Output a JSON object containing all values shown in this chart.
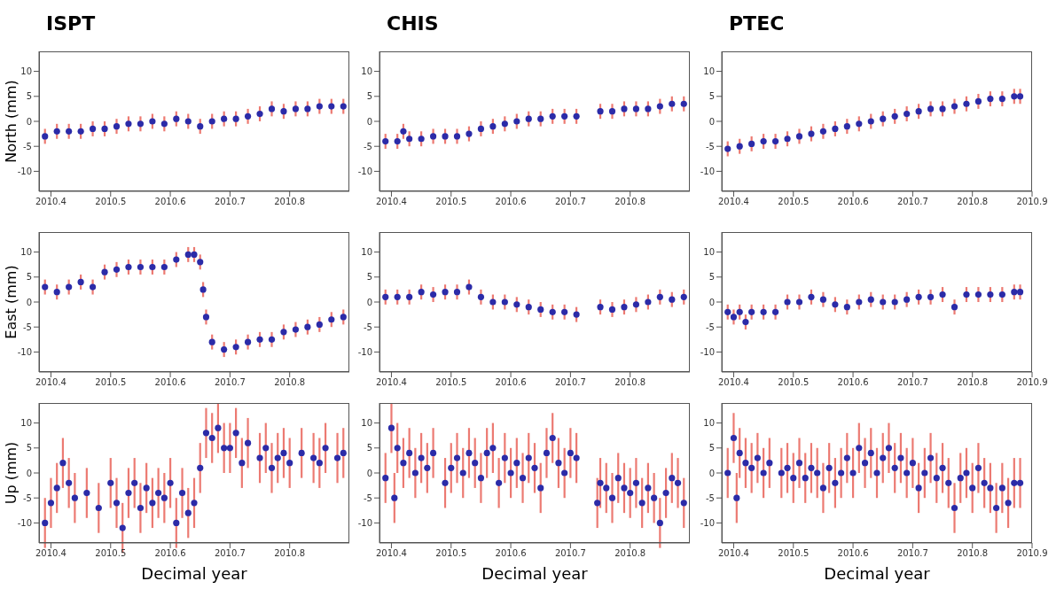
{
  "chart_data": [
    {
      "type": "scatter",
      "title": "ISPT",
      "ylabel": "North (mm)",
      "marker": "circle",
      "xlim": [
        2010.38,
        2010.9
      ],
      "xticks": [
        2010.4,
        2010.5,
        2010.6,
        2010.7,
        2010.8
      ],
      "ylim": [
        -14,
        14
      ],
      "yticks": [
        -10,
        -5,
        0,
        5,
        10
      ],
      "series": [
        {
          "color": "#2b2ba8",
          "x": [
            2010.39,
            2010.41,
            2010.43,
            2010.45,
            2010.47,
            2010.49,
            2010.51,
            2010.53,
            2010.55,
            2010.57,
            2010.59,
            2010.61,
            2010.63,
            2010.65,
            2010.67,
            2010.69,
            2010.71,
            2010.73,
            2010.75,
            2010.77,
            2010.79,
            2010.81,
            2010.83,
            2010.85,
            2010.87,
            2010.89
          ],
          "values": [
            -3,
            -2,
            -2,
            -2,
            -1.5,
            -1.5,
            -1,
            -0.5,
            -0.5,
            0,
            -0.5,
            0.5,
            0,
            -1,
            0,
            0.5,
            0.5,
            1,
            1.5,
            2.5,
            2,
            2.5,
            2.5,
            3,
            3,
            3
          ],
          "errors": [
            1.5,
            1.5,
            1.5,
            1.5,
            1.5,
            1.5,
            1.5,
            1.5,
            1.5,
            1.5,
            1.5,
            1.5,
            1.5,
            1.5,
            1.5,
            1.5,
            1.5,
            1.5,
            1.5,
            1.5,
            1.5,
            1.5,
            1.5,
            1.5,
            1.5,
            1.5
          ]
        }
      ]
    },
    {
      "type": "scatter",
      "title": "CHIS",
      "marker": "circle",
      "xlim": [
        2010.38,
        2010.9
      ],
      "xticks": [
        2010.4,
        2010.5,
        2010.6,
        2010.7,
        2010.8
      ],
      "ylim": [
        -14,
        14
      ],
      "yticks": [
        -10,
        -5,
        0,
        5,
        10
      ],
      "series": [
        {
          "color": "#2b2ba8",
          "x": [
            2010.39,
            2010.41,
            2010.42,
            2010.43,
            2010.45,
            2010.47,
            2010.49,
            2010.51,
            2010.53,
            2010.55,
            2010.57,
            2010.59,
            2010.61,
            2010.63,
            2010.65,
            2010.67,
            2010.69,
            2010.71,
            2010.75,
            2010.77,
            2010.79,
            2010.81,
            2010.83,
            2010.85,
            2010.87,
            2010.89
          ],
          "values": [
            -4,
            -4,
            -2,
            -3.5,
            -3.5,
            -3,
            -3,
            -3,
            -2.5,
            -1.5,
            -1,
            -0.5,
            0,
            0.5,
            0.5,
            1,
            1,
            1,
            2,
            2,
            2.5,
            2.5,
            2.5,
            3,
            3.5,
            3.5
          ],
          "errors": [
            1.5,
            1.5,
            1.5,
            1.5,
            1.5,
            1.5,
            1.5,
            1.5,
            1.5,
            1.5,
            1.5,
            1.5,
            1.5,
            1.5,
            1.5,
            1.5,
            1.5,
            1.5,
            1.5,
            1.5,
            1.5,
            1.5,
            1.5,
            1.5,
            1.5,
            1.5
          ]
        }
      ]
    },
    {
      "type": "scatter",
      "title": "PTEC",
      "marker": "circle",
      "xlim": [
        2010.38,
        2010.9
      ],
      "xticks": [
        2010.4,
        2010.5,
        2010.6,
        2010.7,
        2010.8,
        2010.9
      ],
      "ylim": [
        -14,
        14
      ],
      "yticks": [
        -10,
        -5,
        0,
        5,
        10
      ],
      "series": [
        {
          "color": "#2b2ba8",
          "x": [
            2010.39,
            2010.41,
            2010.43,
            2010.45,
            2010.47,
            2010.49,
            2010.51,
            2010.53,
            2010.55,
            2010.57,
            2010.59,
            2010.61,
            2010.63,
            2010.65,
            2010.67,
            2010.69,
            2010.71,
            2010.73,
            2010.75,
            2010.77,
            2010.79,
            2010.81,
            2010.83,
            2010.85,
            2010.87,
            2010.88
          ],
          "values": [
            -5.5,
            -5,
            -4.5,
            -4,
            -4,
            -3.5,
            -3,
            -2.5,
            -2,
            -1.5,
            -1,
            -0.5,
            0,
            0.5,
            1,
            1.5,
            2,
            2.5,
            2.5,
            3,
            3.5,
            4,
            4.5,
            4.5,
            5,
            5
          ],
          "errors": [
            1.5,
            1.5,
            1.5,
            1.5,
            1.5,
            1.5,
            1.5,
            1.5,
            1.5,
            1.5,
            1.5,
            1.5,
            1.5,
            1.5,
            1.5,
            1.5,
            1.5,
            1.5,
            1.5,
            1.5,
            1.5,
            1.5,
            1.5,
            1.5,
            1.5,
            1.5
          ]
        }
      ]
    },
    {
      "type": "scatter",
      "ylabel": "East (mm)",
      "marker": "circle",
      "xlim": [
        2010.38,
        2010.9
      ],
      "xticks": [
        2010.4,
        2010.5,
        2010.6,
        2010.7,
        2010.8
      ],
      "ylim": [
        -14,
        14
      ],
      "yticks": [
        -10,
        -5,
        0,
        5,
        10
      ],
      "series": [
        {
          "color": "#2b2ba8",
          "x": [
            2010.39,
            2010.41,
            2010.43,
            2010.45,
            2010.47,
            2010.49,
            2010.51,
            2010.53,
            2010.55,
            2010.57,
            2010.59,
            2010.61,
            2010.63,
            2010.64,
            2010.65,
            2010.655,
            2010.66,
            2010.67,
            2010.69,
            2010.71,
            2010.73,
            2010.75,
            2010.77,
            2010.79,
            2010.81,
            2010.83,
            2010.85,
            2010.87,
            2010.89
          ],
          "values": [
            3,
            2,
            3,
            4,
            3,
            6,
            6.5,
            7,
            7,
            7,
            7,
            8.5,
            9.5,
            9.5,
            8,
            2.5,
            -3,
            -8,
            -9.5,
            -9,
            -8,
            -7.5,
            -7.5,
            -6,
            -5.5,
            -5,
            -4.5,
            -3.5,
            -3
          ],
          "errors": [
            1.5,
            1.5,
            1.5,
            1.5,
            1.5,
            1.5,
            1.5,
            1.5,
            1.5,
            1.5,
            1.5,
            1.5,
            1.5,
            1.5,
            1.5,
            1.5,
            1.5,
            1.5,
            1.5,
            1.5,
            1.5,
            1.5,
            1.5,
            1.5,
            1.5,
            1.5,
            1.5,
            1.5,
            1.5
          ]
        }
      ]
    },
    {
      "type": "scatter",
      "marker": "circle",
      "xlim": [
        2010.38,
        2010.9
      ],
      "xticks": [
        2010.4,
        2010.5,
        2010.6,
        2010.7,
        2010.8
      ],
      "ylim": [
        -14,
        14
      ],
      "yticks": [
        -10,
        -5,
        0,
        5,
        10
      ],
      "series": [
        {
          "color": "#2b2ba8",
          "x": [
            2010.39,
            2010.41,
            2010.43,
            2010.45,
            2010.47,
            2010.49,
            2010.51,
            2010.53,
            2010.55,
            2010.57,
            2010.59,
            2010.61,
            2010.63,
            2010.65,
            2010.67,
            2010.69,
            2010.71,
            2010.75,
            2010.77,
            2010.79,
            2010.81,
            2010.83,
            2010.85,
            2010.87,
            2010.89
          ],
          "values": [
            1,
            1,
            1,
            2,
            1.5,
            2,
            2,
            3,
            1,
            0,
            0,
            -0.5,
            -1,
            -1.5,
            -2,
            -2,
            -2.5,
            -1,
            -1.5,
            -1,
            -0.5,
            0,
            1,
            0.5,
            1
          ],
          "errors": [
            1.5,
            1.5,
            1.5,
            1.5,
            1.5,
            1.5,
            1.5,
            1.5,
            1.5,
            1.5,
            1.5,
            1.5,
            1.5,
            1.5,
            1.5,
            1.5,
            1.5,
            1.5,
            1.5,
            1.5,
            1.5,
            1.5,
            1.5,
            1.5,
            1.5
          ]
        }
      ]
    },
    {
      "type": "scatter",
      "marker": "circle",
      "xlim": [
        2010.38,
        2010.9
      ],
      "xticks": [
        2010.4,
        2010.5,
        2010.6,
        2010.7,
        2010.8,
        2010.9
      ],
      "ylim": [
        -14,
        14
      ],
      "yticks": [
        -10,
        -5,
        0,
        5,
        10
      ],
      "series": [
        {
          "color": "#2b2ba8",
          "x": [
            2010.39,
            2010.4,
            2010.41,
            2010.42,
            2010.43,
            2010.45,
            2010.47,
            2010.49,
            2010.51,
            2010.53,
            2010.55,
            2010.57,
            2010.59,
            2010.61,
            2010.63,
            2010.65,
            2010.67,
            2010.69,
            2010.71,
            2010.73,
            2010.75,
            2010.77,
            2010.79,
            2010.81,
            2010.83,
            2010.85,
            2010.87,
            2010.88
          ],
          "values": [
            -2,
            -3,
            -2,
            -4,
            -2,
            -2,
            -2,
            0,
            0,
            1,
            0.5,
            -0.5,
            -1,
            0,
            0.5,
            0,
            0,
            0.5,
            1,
            1,
            1.5,
            -1,
            1.5,
            1.5,
            1.5,
            1.5,
            2,
            2
          ],
          "errors": [
            1.5,
            1.5,
            1.5,
            1.5,
            1.5,
            1.5,
            1.5,
            1.5,
            1.5,
            1.5,
            1.5,
            1.5,
            1.5,
            1.5,
            1.5,
            1.5,
            1.5,
            1.5,
            1.5,
            1.5,
            1.5,
            1.5,
            1.5,
            1.5,
            1.5,
            1.5,
            1.5,
            1.5
          ]
        }
      ]
    },
    {
      "type": "scatter",
      "ylabel": "Up (mm)",
      "xlabel": "Decimal year",
      "marker": "circle",
      "xlim": [
        2010.38,
        2010.9
      ],
      "xticks": [
        2010.4,
        2010.5,
        2010.6,
        2010.7,
        2010.8
      ],
      "ylim": [
        -14,
        14
      ],
      "yticks": [
        -10,
        -5,
        0,
        5,
        10
      ],
      "series": [
        {
          "color": "#2b2ba8",
          "x": [
            2010.39,
            2010.4,
            2010.41,
            2010.42,
            2010.43,
            2010.44,
            2010.46,
            2010.48,
            2010.5,
            2010.51,
            2010.52,
            2010.53,
            2010.54,
            2010.55,
            2010.56,
            2010.57,
            2010.58,
            2010.59,
            2010.6,
            2010.61,
            2010.62,
            2010.63,
            2010.64,
            2010.65,
            2010.66,
            2010.67,
            2010.68,
            2010.69,
            2010.7,
            2010.71,
            2010.72,
            2010.73,
            2010.75,
            2010.76,
            2010.77,
            2010.78,
            2010.79,
            2010.8,
            2010.82,
            2010.84,
            2010.85,
            2010.86,
            2010.88,
            2010.89
          ],
          "values": [
            -10,
            -6,
            -3,
            2,
            -2,
            -5,
            -4,
            -7,
            -2,
            -6,
            -11,
            -4,
            -2,
            -7,
            -3,
            -6,
            -4,
            -5,
            -2,
            -10,
            -4,
            -8,
            -6,
            1,
            8,
            7,
            9,
            5,
            5,
            8,
            2,
            6,
            3,
            5,
            1,
            3,
            4,
            2,
            4,
            3,
            2,
            5,
            3,
            4
          ],
          "errors": [
            5,
            5,
            5,
            5,
            5,
            5,
            5,
            5,
            5,
            5,
            5,
            5,
            5,
            5,
            5,
            5,
            5,
            5,
            5,
            5,
            5,
            5,
            5,
            5,
            5,
            5,
            5,
            5,
            5,
            5,
            5,
            5,
            5,
            5,
            5,
            5,
            5,
            5,
            5,
            5,
            5,
            5,
            5,
            5
          ]
        }
      ]
    },
    {
      "type": "scatter",
      "xlabel": "Decimal year",
      "marker": "circle",
      "xlim": [
        2010.38,
        2010.9
      ],
      "xticks": [
        2010.4,
        2010.5,
        2010.6,
        2010.7,
        2010.8
      ],
      "ylim": [
        -14,
        14
      ],
      "yticks": [
        -10,
        -5,
        0,
        5,
        10
      ],
      "series": [
        {
          "color": "#2b2ba8",
          "x": [
            2010.39,
            2010.4,
            2010.405,
            2010.41,
            2010.42,
            2010.43,
            2010.44,
            2010.45,
            2010.46,
            2010.47,
            2010.49,
            2010.5,
            2010.51,
            2010.52,
            2010.53,
            2010.54,
            2010.55,
            2010.56,
            2010.57,
            2010.58,
            2010.59,
            2010.6,
            2010.61,
            2010.62,
            2010.63,
            2010.64,
            2010.65,
            2010.66,
            2010.67,
            2010.68,
            2010.69,
            2010.7,
            2010.71,
            2010.745,
            2010.75,
            2010.76,
            2010.77,
            2010.78,
            2010.79,
            2010.8,
            2010.81,
            2010.82,
            2010.83,
            2010.84,
            2010.85,
            2010.86,
            2010.87,
            2010.88,
            2010.89
          ],
          "values": [
            -1,
            9,
            -5,
            5,
            2,
            4,
            0,
            3,
            1,
            4,
            -2,
            1,
            3,
            0,
            4,
            2,
            -1,
            4,
            5,
            -2,
            3,
            0,
            2,
            -1,
            3,
            1,
            -3,
            4,
            7,
            2,
            0,
            4,
            3,
            -6,
            -2,
            -3,
            -5,
            -1,
            -3,
            -4,
            -2,
            -6,
            -3,
            -5,
            -10,
            -4,
            -1,
            -2,
            -6
          ],
          "errors": [
            5,
            5,
            5,
            5,
            5,
            5,
            5,
            5,
            5,
            5,
            5,
            5,
            5,
            5,
            5,
            5,
            5,
            5,
            5,
            5,
            5,
            5,
            5,
            5,
            5,
            5,
            5,
            5,
            5,
            5,
            5,
            5,
            5,
            5,
            5,
            5,
            5,
            5,
            5,
            5,
            5,
            5,
            5,
            5,
            5,
            5,
            5,
            5,
            5
          ]
        }
      ]
    },
    {
      "type": "scatter",
      "xlabel": "Decimal year",
      "marker": "circle",
      "xlim": [
        2010.38,
        2010.9
      ],
      "xticks": [
        2010.4,
        2010.5,
        2010.6,
        2010.7,
        2010.8,
        2010.9
      ],
      "ylim": [
        -14,
        14
      ],
      "yticks": [
        -10,
        -5,
        0,
        5,
        10
      ],
      "series": [
        {
          "color": "#2b2ba8",
          "x": [
            2010.39,
            2010.4,
            2010.405,
            2010.41,
            2010.42,
            2010.43,
            2010.44,
            2010.45,
            2010.46,
            2010.48,
            2010.49,
            2010.5,
            2010.51,
            2010.52,
            2010.53,
            2010.54,
            2010.55,
            2010.56,
            2010.57,
            2010.58,
            2010.59,
            2010.6,
            2010.61,
            2010.62,
            2010.63,
            2010.64,
            2010.65,
            2010.66,
            2010.67,
            2010.68,
            2010.69,
            2010.7,
            2010.71,
            2010.72,
            2010.73,
            2010.74,
            2010.75,
            2010.76,
            2010.77,
            2010.78,
            2010.79,
            2010.8,
            2010.81,
            2010.82,
            2010.83,
            2010.84,
            2010.85,
            2010.86,
            2010.87,
            2010.88
          ],
          "values": [
            0,
            7,
            -5,
            4,
            2,
            1,
            3,
            0,
            2,
            0,
            1,
            -1,
            2,
            -1,
            1,
            0,
            -3,
            1,
            -2,
            0,
            3,
            0,
            5,
            2,
            4,
            0,
            3,
            5,
            1,
            3,
            0,
            2,
            -3,
            0,
            3,
            -1,
            1,
            -2,
            -7,
            -1,
            0,
            -3,
            1,
            -2,
            -3,
            -7,
            -3,
            -6,
            -2,
            -2
          ],
          "errors": [
            5,
            5,
            5,
            5,
            5,
            5,
            5,
            5,
            5,
            5,
            5,
            5,
            5,
            5,
            5,
            5,
            5,
            5,
            5,
            5,
            5,
            5,
            5,
            5,
            5,
            5,
            5,
            5,
            5,
            5,
            5,
            5,
            5,
            5,
            5,
            5,
            5,
            5,
            5,
            5,
            5,
            5,
            5,
            5,
            5,
            5,
            5,
            5,
            5,
            5
          ]
        }
      ]
    }
  ]
}
